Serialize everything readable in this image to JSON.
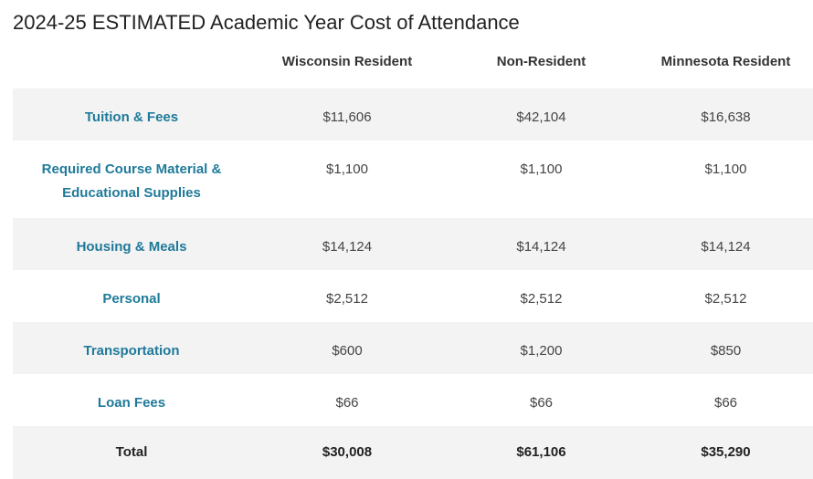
{
  "title": "2024-25 ESTIMATED Academic Year Cost of Attendance",
  "columns": [
    "",
    "Wisconsin Resident",
    "Non-Resident",
    "Minnesota Resident"
  ],
  "rows": [
    {
      "label": "Tuition & Fees",
      "values": [
        "$11,606",
        "$42,104",
        "$16,638"
      ]
    },
    {
      "label": "Required Course Material & Educational Supplies",
      "label_line1": "Required Course Material &",
      "label_line2": "Educational Supplies",
      "values": [
        "$1,100",
        "$1,100",
        "$1,100"
      ]
    },
    {
      "label": "Housing & Meals",
      "values": [
        "$14,124",
        "$14,124",
        "$14,124"
      ]
    },
    {
      "label": "Personal",
      "values": [
        "$2,512",
        "$2,512",
        "$2,512"
      ]
    },
    {
      "label": "Transportation",
      "values": [
        "$600",
        "$1,200",
        "$850"
      ]
    },
    {
      "label": "Loan Fees",
      "values": [
        "$66",
        "$66",
        "$66"
      ]
    }
  ],
  "total": {
    "label": "Total",
    "values": [
      "$30,008",
      "$61,106",
      "$35,290"
    ]
  }
}
